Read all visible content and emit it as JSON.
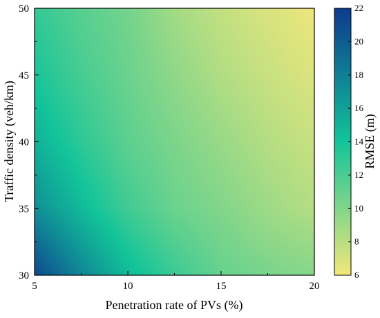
{
  "chart_data": {
    "type": "heatmap",
    "title": "",
    "xlabel": "Penetration rate of PVs (%)",
    "ylabel": "Traffic density (veh/km)",
    "xlim": [
      5,
      20
    ],
    "ylim": [
      30,
      50
    ],
    "x_ticks": [
      "5",
      "10",
      "15",
      "20"
    ],
    "y_ticks": [
      "30",
      "35",
      "40",
      "45",
      "50"
    ],
    "colorbar": {
      "label": "RMSE (m)",
      "range": [
        6,
        22
      ],
      "ticks": [
        "6",
        "8",
        "10",
        "12",
        "14",
        "16",
        "18",
        "20",
        "22"
      ],
      "colors": [
        "#f2e77a",
        "#12c49a",
        "#0d3a8f"
      ]
    },
    "x": [
      5,
      7.5,
      10,
      12.5,
      15,
      17.5,
      20
    ],
    "y": [
      30,
      35,
      40,
      45,
      50
    ],
    "z": [
      [
        21.0,
        17.5,
        14.5,
        12.5,
        11.0,
        10.3,
        9.8
      ],
      [
        17.0,
        14.5,
        12.3,
        10.8,
        10.0,
        9.0,
        8.2
      ],
      [
        15.0,
        13.0,
        11.3,
        10.2,
        9.2,
        8.2,
        7.5
      ],
      [
        13.7,
        12.1,
        10.8,
        9.5,
        8.3,
        7.5,
        6.8
      ],
      [
        12.8,
        11.5,
        10.5,
        8.8,
        7.7,
        6.9,
        6.2
      ]
    ]
  }
}
